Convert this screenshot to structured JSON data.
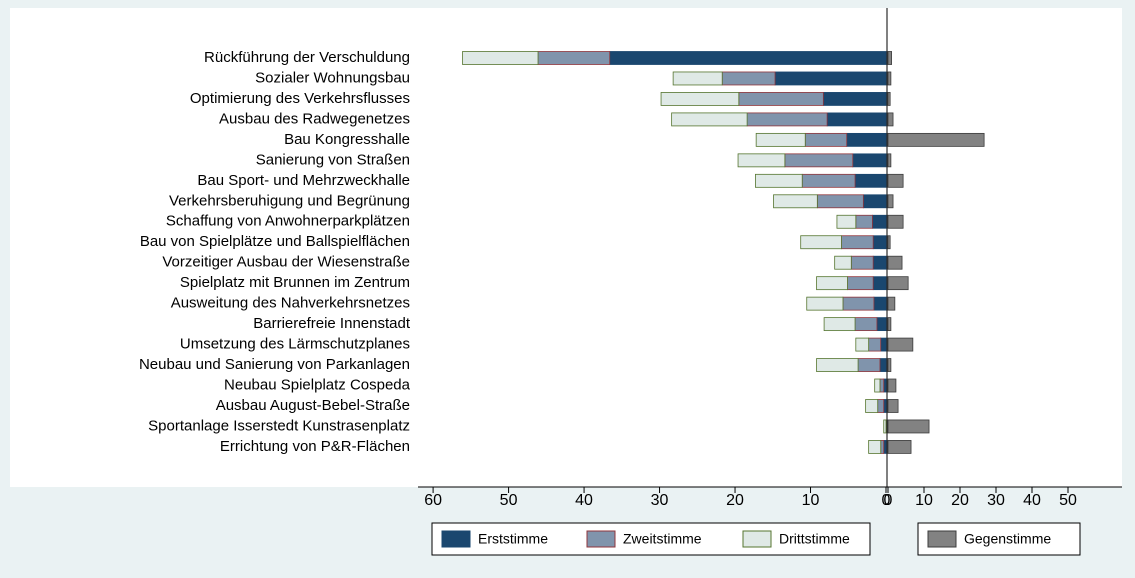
{
  "chart_data": [
    {
      "type": "bar",
      "orientation": "horizontal",
      "stacked": true,
      "legend": "bottom",
      "categories": [
        "Rückführung der Verschuldung",
        "Sozialer Wohnungsbau",
        "Optimierung des Verkehrsflusses",
        "Ausbau des Radwegenetzes",
        "Bau Kongresshalle",
        "Sanierung von Straßen",
        "Bau Sport- und Mehrzweckhalle",
        "Verkehrsberuhigung und Begrünung",
        "Schaffung von Anwohnerparkplätzen",
        "Bau von Spielplätze und Ballspielflächen",
        "Vorzeitiger Ausbau der Wiesenstraße",
        "Spielplatz mit Brunnen im Zentrum",
        "Ausweitung des Nahverkehrsnetzes",
        "Barrierefreie Innenstadt",
        "Umsetzung des Lärmschutzplanes",
        "Neubau und Sanierung von Parkanlagen",
        "Neubau Spielplatz Cospeda",
        "Ausbau August-Bebel-Straße",
        "Sportanlage Isserstedt Kunstrasenplatz",
        "Errichtung von P&R-Flächen"
      ],
      "series": [
        {
          "name": "Erststimme",
          "color": "#1a476f",
          "stroke": "#1a476f",
          "values": [
            36.6,
            14.7,
            8.3,
            7.8,
            5.2,
            4.4,
            4.1,
            3.0,
            1.8,
            1.7,
            1.7,
            1.7,
            1.6,
            1.2,
            0.7,
            0.8,
            0.3,
            0.3,
            0,
            0.3
          ]
        },
        {
          "name": "Zweitstimme",
          "color": "#8094ac",
          "stroke": "#90353b",
          "values": [
            9.5,
            7.0,
            11.2,
            10.6,
            5.5,
            9.0,
            7.0,
            6.1,
            2.2,
            4.2,
            2.9,
            3.4,
            4.1,
            2.9,
            1.6,
            2.9,
            0.5,
            0.8,
            0,
            0.4
          ]
        },
        {
          "name": "Drittstimme",
          "color": "#dfe9e6",
          "stroke": "#55752f",
          "values": [
            10.0,
            6.5,
            10.3,
            10.0,
            6.5,
            6.2,
            6.2,
            5.8,
            2.5,
            5.4,
            2.2,
            4.1,
            4.8,
            4.1,
            1.7,
            5.5,
            0.7,
            1.6,
            0.3,
            1.6
          ]
        }
      ],
      "xlim": [
        62,
        0
      ],
      "xticks": [
        60,
        50,
        40,
        30,
        20,
        10,
        0
      ]
    },
    {
      "type": "bar",
      "orientation": "horizontal",
      "stacked": true,
      "legend": "bottom",
      "series": [
        {
          "name": "Gegenstimme",
          "color": "#828282",
          "stroke": "#3c3c3c",
          "values": [
            1.0,
            0.8,
            0.6,
            1.4,
            26.7,
            0.8,
            4.2,
            1.4,
            4.2,
            0.6,
            3.9,
            5.6,
            1.9,
            0.8,
            6.9,
            0.8,
            2.2,
            2.8,
            11.4,
            6.4
          ]
        }
      ],
      "xlim": [
        0,
        65
      ],
      "xticks": [
        0,
        10,
        20,
        30,
        40,
        50
      ]
    }
  ]
}
